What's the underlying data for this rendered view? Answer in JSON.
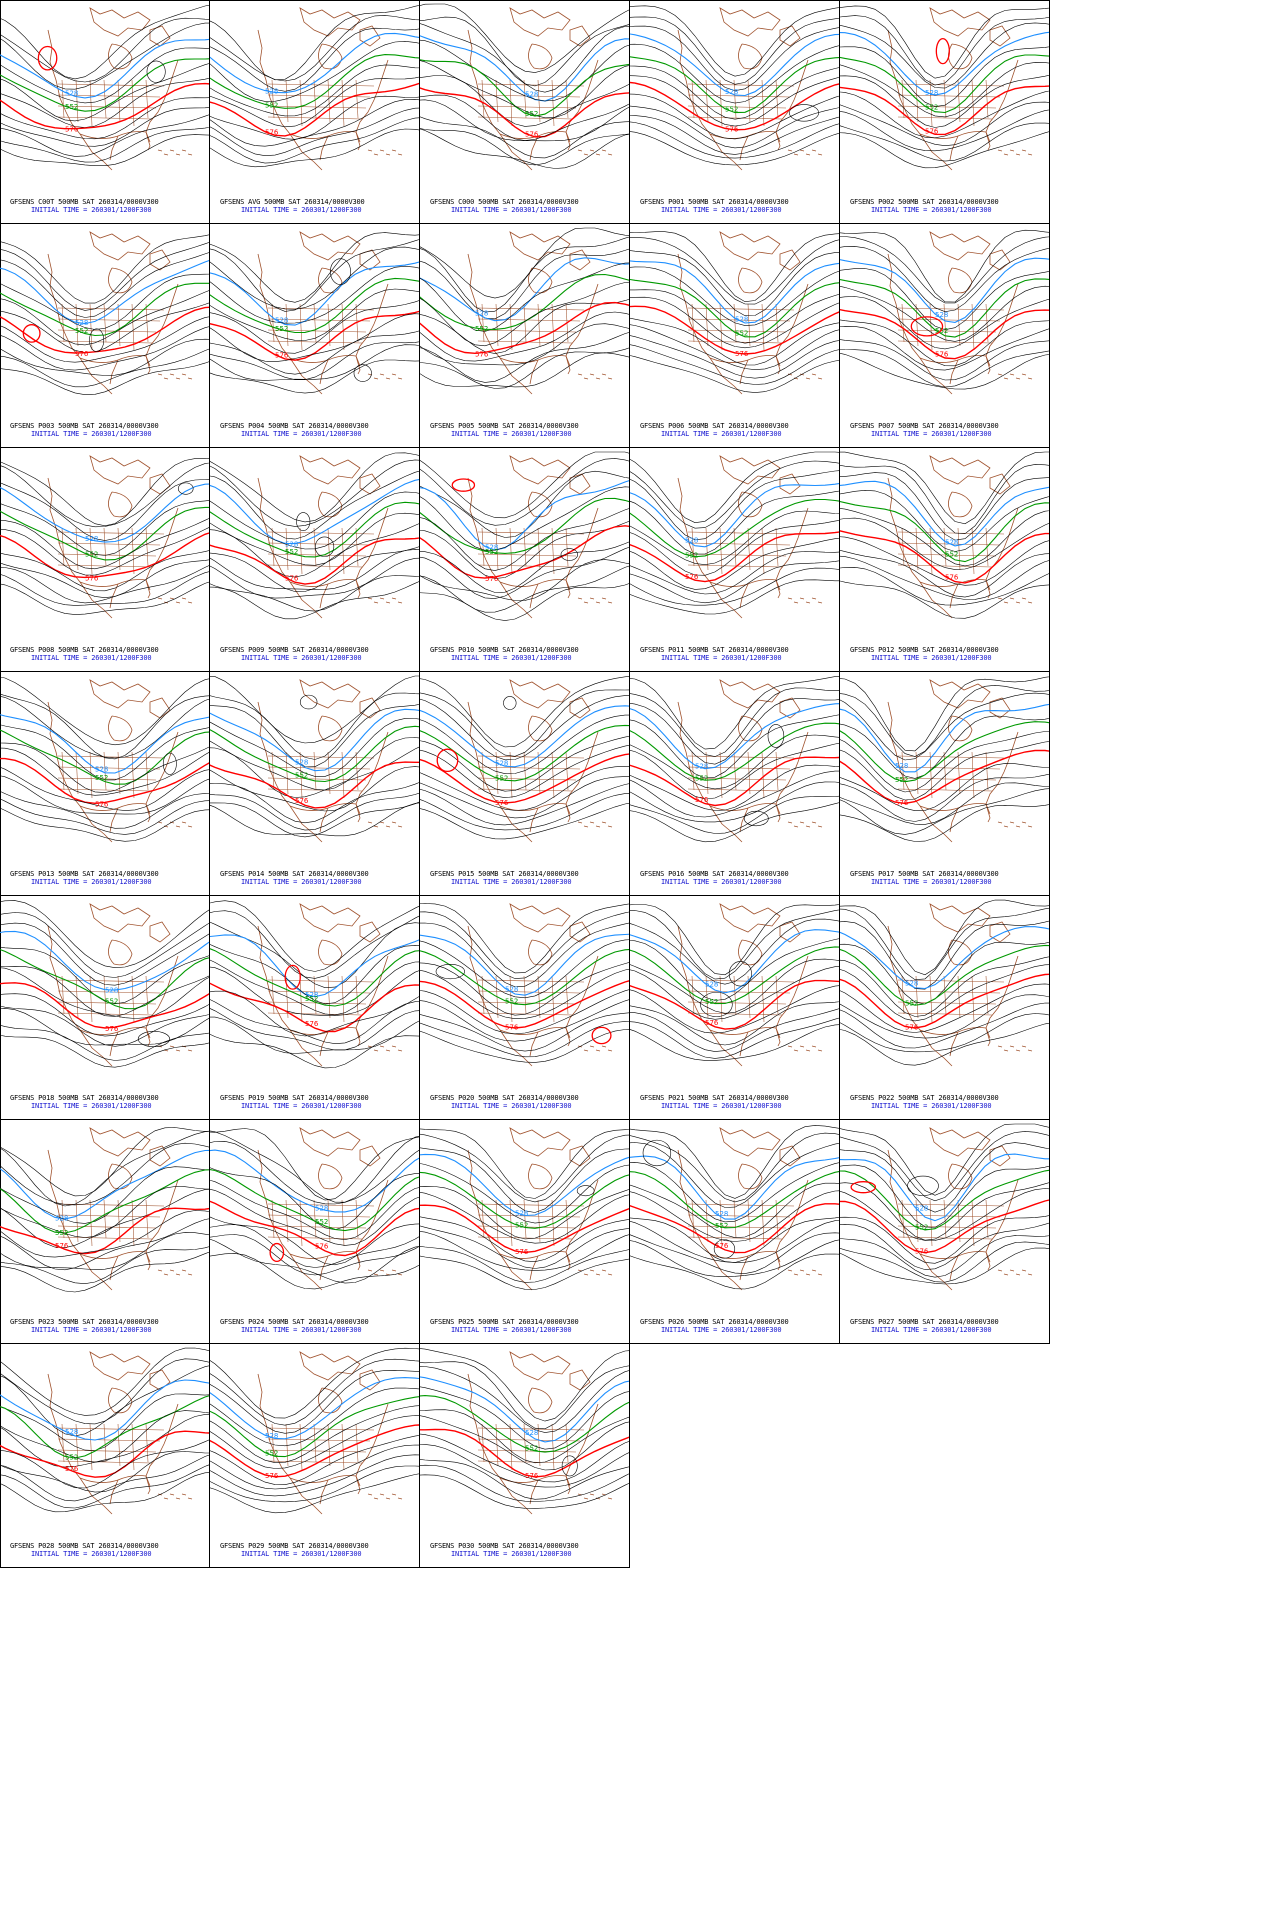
{
  "contour_labels": {
    "low": "528",
    "mid": "552",
    "high": "576"
  },
  "colors": {
    "low": "#1e8fff",
    "mid": "#009900",
    "high": "#ff0000",
    "other": "#000000",
    "map": "#a0522d",
    "caption_line2": "#1515d0"
  },
  "panels": [
    {
      "id": "C00T",
      "line1": "GFSENS C00T 500MB SAT 260314/0000V300",
      "line2": "INITIAL TIME = 260301/1200F300"
    },
    {
      "id": "AVG",
      "line1": "GFSENS AVG 500MB SAT 260314/0000V300",
      "line2": "INITIAL TIME = 260301/1200F300"
    },
    {
      "id": "C000",
      "line1": "GFSENS C000 500MB SAT 260314/0000V300",
      "line2": "INITIAL TIME = 260301/1200F300"
    },
    {
      "id": "P001",
      "line1": "GFSENS P001 500MB SAT 260314/0000V300",
      "line2": "INITIAL TIME = 260301/1200F300"
    },
    {
      "id": "P002",
      "line1": "GFSENS P002 500MB SAT 260314/0000V300",
      "line2": "INITIAL TIME = 260301/1200F300"
    },
    {
      "id": "P003",
      "line1": "GFSENS P003 500MB SAT 260314/0000V300",
      "line2": "INITIAL TIME = 260301/1200F300"
    },
    {
      "id": "P004",
      "line1": "GFSENS P004 500MB SAT 260314/0000V300",
      "line2": "INITIAL TIME = 260301/1200F300"
    },
    {
      "id": "P005",
      "line1": "GFSENS P005 500MB SAT 260314/0000V300",
      "line2": "INITIAL TIME = 260301/1200F300"
    },
    {
      "id": "P006",
      "line1": "GFSENS P006 500MB SAT 260314/0000V300",
      "line2": "INITIAL TIME = 260301/1200F300"
    },
    {
      "id": "P007",
      "line1": "GFSENS P007 500MB SAT 260314/0000V300",
      "line2": "INITIAL TIME = 260301/1200F300"
    },
    {
      "id": "P008",
      "line1": "GFSENS P008 500MB SAT 260314/0000V300",
      "line2": "INITIAL TIME = 260301/1200F300"
    },
    {
      "id": "P009",
      "line1": "GFSENS P009 500MB SAT 260314/0000V300",
      "line2": "INITIAL TIME = 260301/1200F300"
    },
    {
      "id": "P010",
      "line1": "GFSENS P010 500MB SAT 260314/0000V300",
      "line2": "INITIAL TIME = 260301/1200F300"
    },
    {
      "id": "P011",
      "line1": "GFSENS P011 500MB SAT 260314/0000V300",
      "line2": "INITIAL TIME = 260301/1200F300"
    },
    {
      "id": "P012",
      "line1": "GFSENS P012 500MB SAT 260314/0000V300",
      "line2": "INITIAL TIME = 260301/1200F300"
    },
    {
      "id": "P013",
      "line1": "GFSENS P013 500MB SAT 260314/0000V300",
      "line2": "INITIAL TIME = 260301/1200F300"
    },
    {
      "id": "P014",
      "line1": "GFSENS P014 500MB SAT 260314/0000V300",
      "line2": "INITIAL TIME = 260301/1200F300"
    },
    {
      "id": "P015",
      "line1": "GFSENS P015 500MB SAT 260314/0000V300",
      "line2": "INITIAL TIME = 260301/1200F300"
    },
    {
      "id": "P016",
      "line1": "GFSENS P016 500MB SAT 260314/0000V300",
      "line2": "INITIAL TIME = 260301/1200F300"
    },
    {
      "id": "P017",
      "line1": "GFSENS P017 500MB SAT 260314/0000V300",
      "line2": "INITIAL TIME = 260301/1200F300"
    },
    {
      "id": "P018",
      "line1": "GFSENS P018 500MB SAT 260314/0000V300",
      "line2": "INITIAL TIME = 260301/1200F300"
    },
    {
      "id": "P019",
      "line1": "GFSENS P019 500MB SAT 260314/0000V300",
      "line2": "INITIAL TIME = 260301/1200F300"
    },
    {
      "id": "P020",
      "line1": "GFSENS P020 500MB SAT 260314/0000V300",
      "line2": "INITIAL TIME = 260301/1200F300"
    },
    {
      "id": "P021",
      "line1": "GFSENS P021 500MB SAT 260314/0000V300",
      "line2": "INITIAL TIME = 260301/1200F300"
    },
    {
      "id": "P022",
      "line1": "GFSENS P022 500MB SAT 260314/0000V300",
      "line2": "INITIAL TIME = 260301/1200F300"
    },
    {
      "id": "P023",
      "line1": "GFSENS P023 500MB SAT 260314/0000V300",
      "line2": "INITIAL TIME = 260301/1200F300"
    },
    {
      "id": "P024",
      "line1": "GFSENS P024 500MB SAT 260314/0000V300",
      "line2": "INITIAL TIME = 260301/1200F300"
    },
    {
      "id": "P025",
      "line1": "GFSENS P025 500MB SAT 260314/0000V300",
      "line2": "INITIAL TIME = 260301/1200F300"
    },
    {
      "id": "P026",
      "line1": "GFSENS P026 500MB SAT 260314/0000V300",
      "line2": "INITIAL TIME = 260301/1200F300"
    },
    {
      "id": "P027",
      "line1": "GFSENS P027 500MB SAT 260314/0000V300",
      "line2": "INITIAL TIME = 260301/1200F300"
    },
    {
      "id": "P028",
      "line1": "GFSENS P028 500MB SAT 260314/0000V300",
      "line2": "INITIAL TIME = 260301/1200F300"
    },
    {
      "id": "P029",
      "line1": "GFSENS P029 500MB SAT 260314/0000V300",
      "line2": "INITIAL TIME = 260301/1200F300"
    },
    {
      "id": "P030",
      "line1": "GFSENS P030 500MB SAT 260314/0000V300",
      "line2": "INITIAL TIME = 260301/1200F300"
    }
  ]
}
